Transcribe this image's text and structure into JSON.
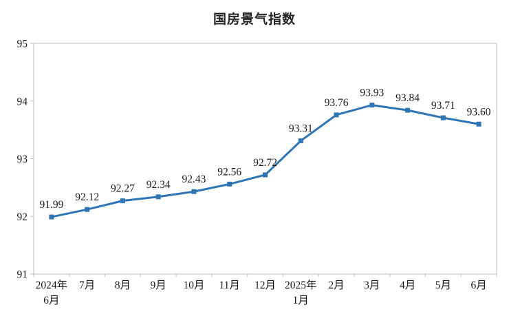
{
  "chart_data": {
    "type": "line",
    "title": "国房景气指数",
    "series_name": "国房景气指数",
    "categories": [
      [
        "2024年",
        "6月"
      ],
      [
        "7月"
      ],
      [
        "8月"
      ],
      [
        "9月"
      ],
      [
        "10月"
      ],
      [
        "11月"
      ],
      [
        "12月"
      ],
      [
        "2025年",
        "1月"
      ],
      [
        "2月"
      ],
      [
        "3月"
      ],
      [
        "4月"
      ],
      [
        "5月"
      ],
      [
        "6月"
      ]
    ],
    "values": [
      91.99,
      92.12,
      92.27,
      92.34,
      92.43,
      92.56,
      92.72,
      93.31,
      93.76,
      93.93,
      93.84,
      93.71,
      93.6
    ],
    "point_labels": [
      "91.99",
      "92.12",
      "92.27",
      "92.34",
      "92.43",
      "92.56",
      "92.72",
      "93.31",
      "93.76",
      "93.93",
      "93.84",
      "93.71",
      "93.60"
    ],
    "xlabel": "",
    "ylabel": "",
    "ylim": [
      91,
      95
    ],
    "y_tick_step": 1,
    "y_tick_labels": [
      "91",
      "92",
      "93",
      "94",
      "95"
    ],
    "grid": false,
    "legend_position": "none",
    "line_color": "#2E75B6",
    "axis_color": "#BFBFBF",
    "text_color": "#1a1a1a"
  }
}
